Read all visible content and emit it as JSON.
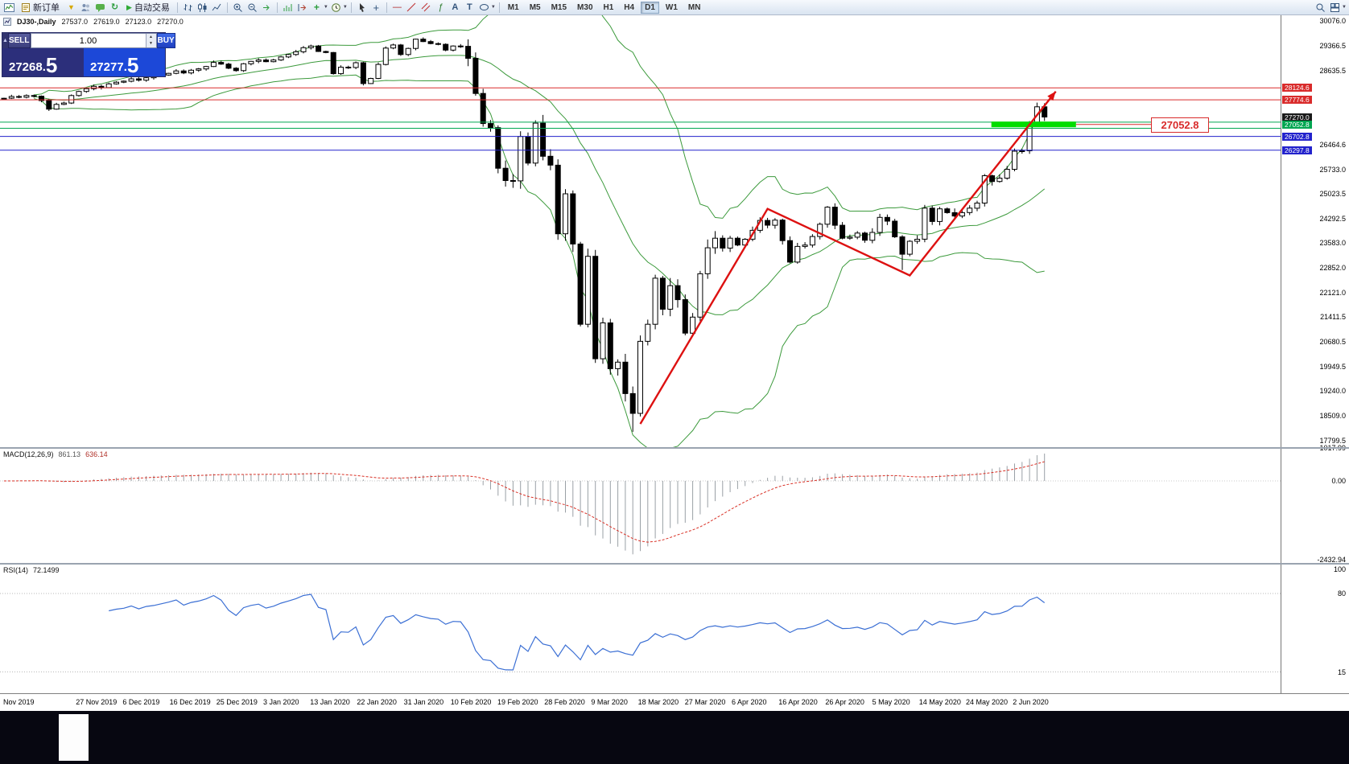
{
  "toolbar": {
    "new_order_label": "新订单",
    "autotrading_label": "自动交易",
    "timeframes": [
      "M1",
      "M5",
      "M15",
      "M30",
      "H1",
      "H4",
      "D1",
      "W1",
      "MN"
    ],
    "active_timeframe": "D1"
  },
  "chart_header": {
    "symbol": "DJ30-,Daily",
    "open": "27537.0",
    "high": "27619.0",
    "low": "27123.0",
    "close": "27270.0"
  },
  "one_click": {
    "sell_label": "SELL",
    "buy_label": "BUY",
    "volume": "1.00",
    "sell_price_main": "27268.",
    "sell_price_big": "5",
    "buy_price_main": "27277.",
    "buy_price_big": "5"
  },
  "colors": {
    "band_green": "#3c9a3c",
    "arrow_red": "#dd1111",
    "level_red": "#d92b2b",
    "level_blue": "#2222cc",
    "level_green": "#00a651",
    "highlight_green": "#00dd00",
    "current_tag": "#1a1a1a",
    "rsi_blue": "#3b6fd4",
    "macd_gray": "#9aa0a6",
    "signal_red": "#d93025",
    "candle_up": "#ffffff",
    "candle_down": "#000000"
  },
  "chart_data": {
    "type": "candlestick",
    "symbol": "DJ30-",
    "timeframe": "Daily",
    "first_open": 27800,
    "closes": [
      27820,
      27870,
      27850,
      27900,
      27880,
      27750,
      27500,
      27640,
      27680,
      27900,
      28020,
      28100,
      28170,
      28130,
      28240,
      28290,
      28320,
      28390,
      28350,
      28420,
      28450,
      28500,
      28550,
      28620,
      28560,
      28640,
      28680,
      28750,
      28870,
      28820,
      28700,
      28630,
      28830,
      28900,
      28940,
      28890,
      28940,
      29030,
      29100,
      29180,
      29300,
      29350,
      29190,
      29160,
      28540,
      28730,
      28720,
      28860,
      28250,
      28400,
      28810,
      29290,
      29380,
      29100,
      29280,
      29550,
      29480,
      29420,
      29400,
      29230,
      29350,
      29340,
      28990,
      27960,
      27080,
      26960,
      25770,
      25410,
      25400,
      26700,
      25920,
      27090,
      26120,
      25860,
      23850,
      25020,
      23550,
      21200,
      23190,
      20190,
      21240,
      19900,
      20090,
      19170,
      18590,
      20700,
      21200,
      22550,
      21640,
      22330,
      21920,
      20940,
      21410,
      22680,
      23440,
      23720,
      23430,
      23720,
      23520,
      23690,
      23950,
      24240,
      24100,
      24250,
      23650,
      23020,
      23480,
      23520,
      23770,
      24130,
      24630,
      24100,
      23720,
      23750,
      23870,
      23660,
      23890,
      24330,
      24220,
      23760,
      23250,
      23630,
      23690,
      24600,
      24210,
      24580,
      24470,
      24370,
      24470,
      24600,
      24750,
      25550,
      25380,
      25480,
      25740,
      26270,
      26280,
      27110,
      27570,
      27270
    ],
    "wick_spikes": [
      {
        "bar": 84,
        "low": 18050
      },
      {
        "bar": 120,
        "low": 22790
      }
    ],
    "y_axis": {
      "top_price": 30250,
      "bottom_price": 17600,
      "ticks": [
        "30076.0",
        "29366.5",
        "28635.5",
        "26464.6",
        "25733.0",
        "25023.5",
        "24292.5",
        "23583.0",
        "22852.0",
        "22121.0",
        "21411.5",
        "20680.5",
        "19949.5",
        "19240.0",
        "18509.0",
        "17799.5"
      ]
    },
    "indicators": {
      "bollinger": {
        "period": 20,
        "deviation": 2
      },
      "macd": {
        "label": "MACD(12,26,9)",
        "value_main": "861.13",
        "value_signal": "636.14",
        "axis_labels": [
          "1017.99",
          "0.00",
          "-2432.94"
        ]
      },
      "rsi": {
        "label": "RSI(14)",
        "value": "72.1499",
        "axis_labels": [
          "100",
          "80",
          "15"
        ],
        "levels": [
          80,
          15
        ]
      }
    },
    "annotations": {
      "resistance_lines": [
        {
          "price": 28124.6,
          "label": "28124.6"
        },
        {
          "price": 27774.6,
          "label": "27774.6"
        }
      ],
      "current_price_label": "27270.0",
      "current_price": 27270.0,
      "green_lines": [
        27120,
        26940
      ],
      "green_bar": {
        "price": 27052.8,
        "bar_start": 131.9,
        "bar_end": 143.2,
        "label": "27052.8"
      },
      "support_lines": [
        {
          "price": 26702.8,
          "label": "26702.8"
        },
        {
          "price": 26297.8,
          "label": "26297.8"
        }
      ],
      "callout": {
        "text": "27052.8"
      },
      "trend_arrow": {
        "points_bar_price": [
          [
            85,
            18280
          ],
          [
            102,
            24580
          ],
          [
            121,
            22630
          ],
          [
            140.5,
            28020
          ]
        ]
      }
    },
    "time_axis": [
      "Nov 2019",
      "27 Nov 2019",
      "6 Dec 2019",
      "16 Dec 2019",
      "25 Dec 2019",
      "3 Jan 2020",
      "13 Jan 2020",
      "22 Jan 2020",
      "31 Jan 2020",
      "10 Feb 2020",
      "19 Feb 2020",
      "28 Feb 2020",
      "9 Mar 2020",
      "18 Mar 2020",
      "27 Mar 2020",
      "6 Apr 2020",
      "16 Apr 2020",
      "26 Apr 2020",
      "5 May 2020",
      "14 May 2020",
      "24 May 2020",
      "2 Jun 2020"
    ]
  }
}
